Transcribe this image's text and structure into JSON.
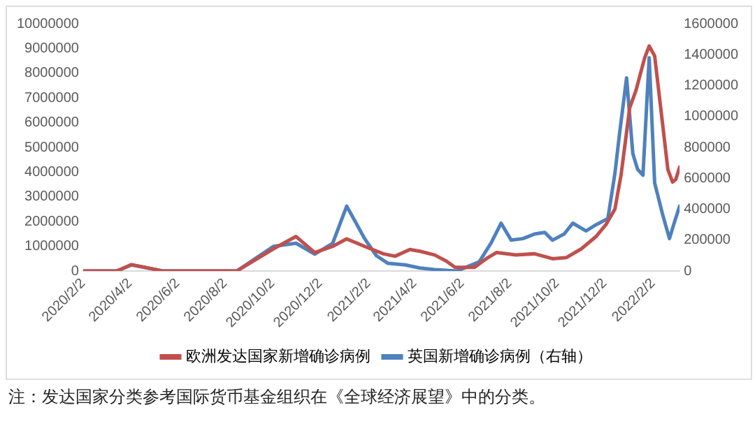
{
  "chart_data": {
    "type": "line",
    "annotations": [
      "注：发达国家分类参考国际货币基金组织在《全球经济展望》中的分类。"
    ],
    "xlim": [
      "2020-02-02",
      "2022-03-08"
    ],
    "xticks": [
      {
        "value": "2020-02-02",
        "label": "2020/2/2"
      },
      {
        "value": "2020-04-02",
        "label": "2020/4/2"
      },
      {
        "value": "2020-06-02",
        "label": "2020/6/2"
      },
      {
        "value": "2020-08-02",
        "label": "2020/8/2"
      },
      {
        "value": "2020-10-02",
        "label": "2020/10/2"
      },
      {
        "value": "2020-12-02",
        "label": "2020/12/2"
      },
      {
        "value": "2021-02-02",
        "label": "2021/2/2"
      },
      {
        "value": "2021-04-02",
        "label": "2021/4/2"
      },
      {
        "value": "2021-06-02",
        "label": "2021/6/2"
      },
      {
        "value": "2021-08-02",
        "label": "2021/8/2"
      },
      {
        "value": "2021-10-02",
        "label": "2021/10/2"
      },
      {
        "value": "2021-12-02",
        "label": "2021/12/2"
      },
      {
        "value": "2022-02-02",
        "label": "2022/2/2"
      }
    ],
    "ylim": [
      0,
      10000000
    ],
    "yticks": [
      0,
      1000000,
      2000000,
      3000000,
      4000000,
      5000000,
      6000000,
      7000000,
      8000000,
      9000000,
      10000000
    ],
    "y2lim": [
      0,
      1600000
    ],
    "y2ticks": [
      0,
      200000,
      400000,
      600000,
      800000,
      1000000,
      1200000,
      1400000,
      1600000
    ],
    "grid": false,
    "legend": "bottom",
    "marker": "none",
    "line_style": "solid",
    "series": [
      {
        "name": "欧洲发达国家新增确诊病例",
        "color": "#c0504d",
        "x": [
          "2020-02-02",
          "2020-03-16",
          "2020-04-04",
          "2020-05-15",
          "2020-08-17",
          "2020-10-03",
          "2020-11-01",
          "2020-11-25",
          "2020-12-18",
          "2021-01-05",
          "2021-01-28",
          "2021-02-21",
          "2021-03-08",
          "2021-03-27",
          "2021-04-09",
          "2021-04-28",
          "2021-05-13",
          "2021-05-24",
          "2021-06-05",
          "2021-06-18",
          "2021-07-03",
          "2021-07-16",
          "2021-08-10",
          "2021-09-03",
          "2021-09-26",
          "2021-10-14",
          "2021-11-02",
          "2021-11-21",
          "2021-12-04",
          "2021-12-15",
          "2021-12-23",
          "2022-01-03",
          "2022-01-11",
          "2022-01-22",
          "2022-01-28",
          "2022-02-04",
          "2022-02-14",
          "2022-02-21",
          "2022-02-27",
          "2022-03-03",
          "2022-03-08"
        ],
        "values": [
          0,
          0,
          260000,
          0,
          0,
          900000,
          1400000,
          750000,
          1000000,
          1300000,
          1000000,
          700000,
          600000,
          870000,
          800000,
          650000,
          400000,
          150000,
          150000,
          150000,
          500000,
          750000,
          650000,
          700000,
          500000,
          550000,
          900000,
          1400000,
          1900000,
          2500000,
          3900000,
          6600000,
          7300000,
          8600000,
          9100000,
          8700000,
          6000000,
          4100000,
          3600000,
          3700000,
          4200000
        ]
      },
      {
        "name": "英国新增确诊病例（右轴）",
        "color": "#4f81bd",
        "axis": "y2",
        "x": [
          "2020-02-02",
          "2020-03-16",
          "2020-04-04",
          "2020-05-15",
          "2020-08-17",
          "2020-10-03",
          "2020-11-01",
          "2020-11-25",
          "2020-12-18",
          "2021-01-05",
          "2021-01-28",
          "2021-02-12",
          "2021-02-27",
          "2021-03-21",
          "2021-04-09",
          "2021-04-28",
          "2021-05-26",
          "2021-06-05",
          "2021-06-24",
          "2021-07-09",
          "2021-07-22",
          "2021-08-04",
          "2021-08-19",
          "2021-09-03",
          "2021-09-16",
          "2021-09-26",
          "2021-10-11",
          "2021-10-22",
          "2021-11-08",
          "2021-11-21",
          "2021-12-06",
          "2021-12-15",
          "2021-12-21",
          "2021-12-30",
          "2022-01-07",
          "2022-01-13",
          "2022-01-20",
          "2022-01-28",
          "2022-02-04",
          "2022-02-14",
          "2022-02-23",
          "2022-03-01",
          "2022-03-08"
        ],
        "values": [
          0,
          0,
          40000,
          0,
          0,
          160000,
          180000,
          110000,
          180000,
          420000,
          210000,
          100000,
          50000,
          40000,
          20000,
          10000,
          0,
          20000,
          60000,
          180000,
          310000,
          200000,
          210000,
          240000,
          250000,
          200000,
          240000,
          310000,
          260000,
          300000,
          340000,
          630000,
          890000,
          1250000,
          760000,
          660000,
          620000,
          1380000,
          570000,
          370000,
          210000,
          310000,
          420000
        ]
      }
    ]
  }
}
